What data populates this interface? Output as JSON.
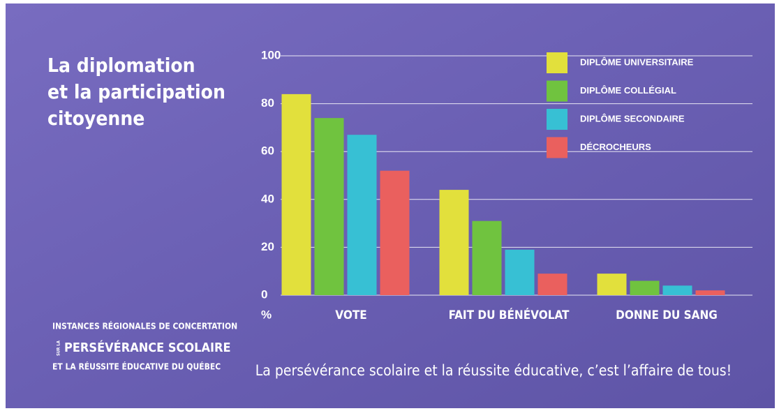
{
  "chart_data": {
    "type": "bar",
    "title": [
      "La diplomation",
      "et la participation",
      "citoyenne"
    ],
    "y_unit": "%",
    "categories": [
      "VOTE",
      "FAIT DU BÉNÉVOLAT",
      "DONNE DU SANG"
    ],
    "series": [
      {
        "name": "DIPLÔME UNIVERSITAIRE",
        "color": "#e2e03c",
        "values": [
          84,
          44,
          9
        ]
      },
      {
        "name": "DIPLÔME COLLÉGIAL",
        "color": "#70c33f",
        "values": [
          74,
          31,
          6
        ]
      },
      {
        "name": "DIPLÔME SECONDAIRE",
        "color": "#37c0d4",
        "values": [
          67,
          19,
          4
        ]
      },
      {
        "name": "DÉCROCHEURS",
        "color": "#ea605e",
        "values": [
          52,
          9,
          2
        ]
      }
    ],
    "ylim": [
      0,
      100
    ],
    "yticks": [
      0,
      20,
      40,
      60,
      80,
      100
    ],
    "grid": true,
    "logo": [
      "INSTANCES RÉGIONALES DE CONCERTATION",
      "SUR LA",
      "PERSÉVÉRANCE SCOLAIRE",
      "ET LA RÉUSSITE ÉDUCATIVE DU QUÉBEC"
    ],
    "tagline": "La persévérance scolaire et la réussite éducative, c’est l’affaire de tous!"
  }
}
